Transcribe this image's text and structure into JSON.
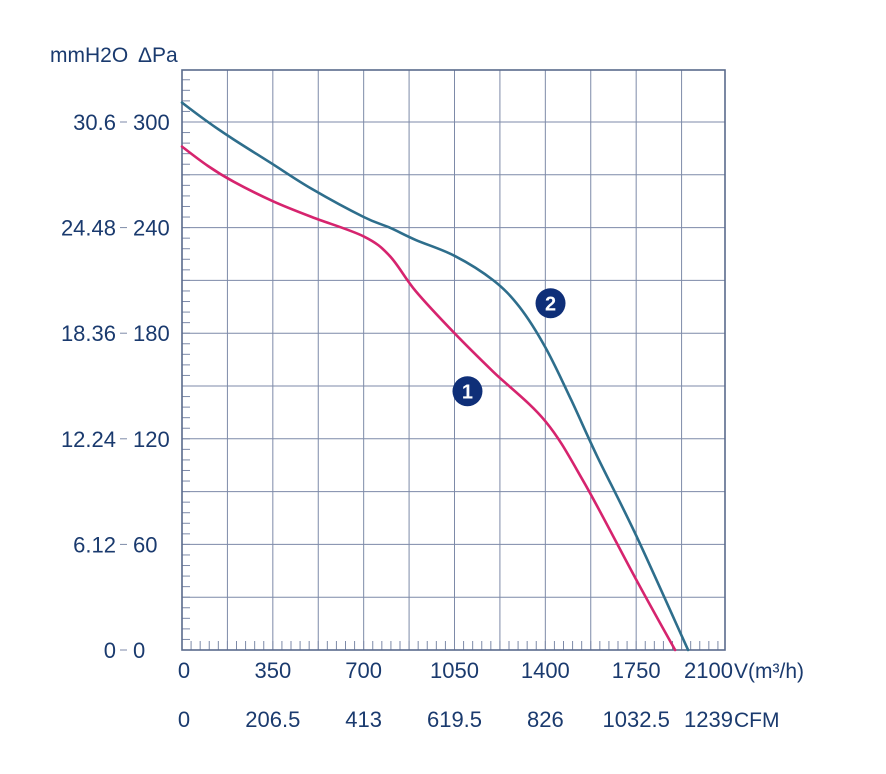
{
  "chart_data": {
    "type": "line",
    "y_unit_left": "mmH2O",
    "y_unit_right": "ΔPa",
    "x_unit_primary": "V(m³/h)",
    "x_unit_secondary": "CFM",
    "x_ticks_primary": [
      "0",
      "350",
      "700",
      "1050",
      "1400",
      "1750",
      "2100"
    ],
    "x_ticks_secondary": [
      "0",
      "206.5",
      "413",
      "619.5",
      "826",
      "1032.5",
      "1239"
    ],
    "y_ticks_mmh2o": [
      "0",
      "6.12",
      "12.24",
      "18.36",
      "24.48",
      "30.6"
    ],
    "y_ticks_pa": [
      "0",
      "60",
      "120",
      "180",
      "240",
      "300"
    ],
    "xlim": [
      0,
      2100
    ],
    "ylim": [
      0,
      330
    ],
    "grid": true,
    "series": [
      {
        "name": "1",
        "color": "#d6246e",
        "x": [
          0,
          100,
          200,
          350,
          500,
          700,
          800,
          900,
          1050,
          1200,
          1400,
          1550,
          1750,
          1900
        ],
        "y": [
          286,
          275,
          266,
          255,
          246,
          235,
          224,
          204,
          180,
          158,
          130,
          95,
          40,
          0
        ]
      },
      {
        "name": "2",
        "color": "#2e6e8c",
        "x": [
          0,
          100,
          200,
          350,
          500,
          700,
          800,
          900,
          1050,
          1200,
          1300,
          1400,
          1500,
          1600,
          1750,
          1950
        ],
        "y": [
          311,
          300,
          290,
          276,
          262,
          246,
          240,
          233,
          224,
          210,
          195,
          172,
          142,
          110,
          65,
          0
        ]
      }
    ],
    "badges": [
      {
        "label": "1",
        "x": 1100,
        "y": 147
      },
      {
        "label": "2",
        "x": 1420,
        "y": 197
      }
    ]
  }
}
